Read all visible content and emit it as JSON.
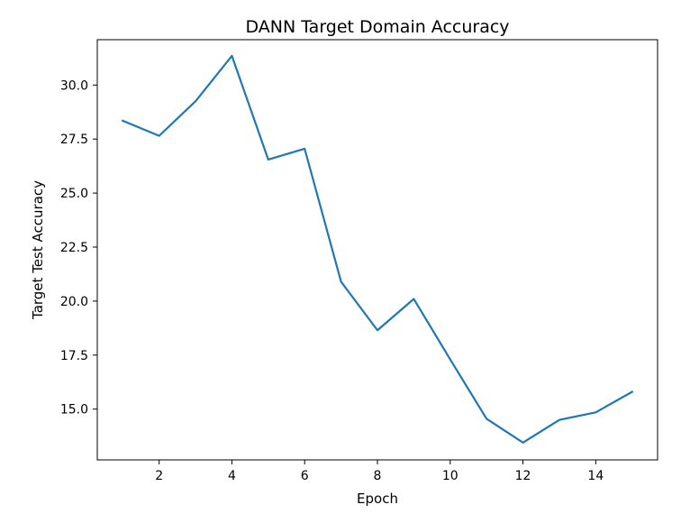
{
  "chart_data": {
    "type": "line",
    "title": "DANN Target Domain Accuracy",
    "xlabel": "Epoch",
    "ylabel": "Target Test Accuracy",
    "xlim": [
      0.3,
      15.7
    ],
    "ylim": [
      12.65,
      32.1
    ],
    "x_ticks": [
      2,
      4,
      6,
      8,
      10,
      12,
      14
    ],
    "y_ticks": [
      15.0,
      17.5,
      20.0,
      22.5,
      25.0,
      27.5,
      30.0
    ],
    "y_tick_labels": [
      "15.0",
      "17.5",
      "20.0",
      "22.5",
      "25.0",
      "27.5",
      "30.0"
    ],
    "grid": false,
    "series": [
      {
        "color": "#1f77b4",
        "x": [
          1,
          2,
          3,
          4,
          5,
          6,
          7,
          8,
          9,
          10,
          11,
          12,
          13,
          14,
          15
        ],
        "y": [
          28.35,
          27.65,
          29.25,
          31.35,
          26.55,
          27.05,
          20.9,
          18.65,
          20.1,
          17.3,
          14.55,
          13.45,
          14.5,
          14.85,
          15.8
        ]
      }
    ]
  }
}
